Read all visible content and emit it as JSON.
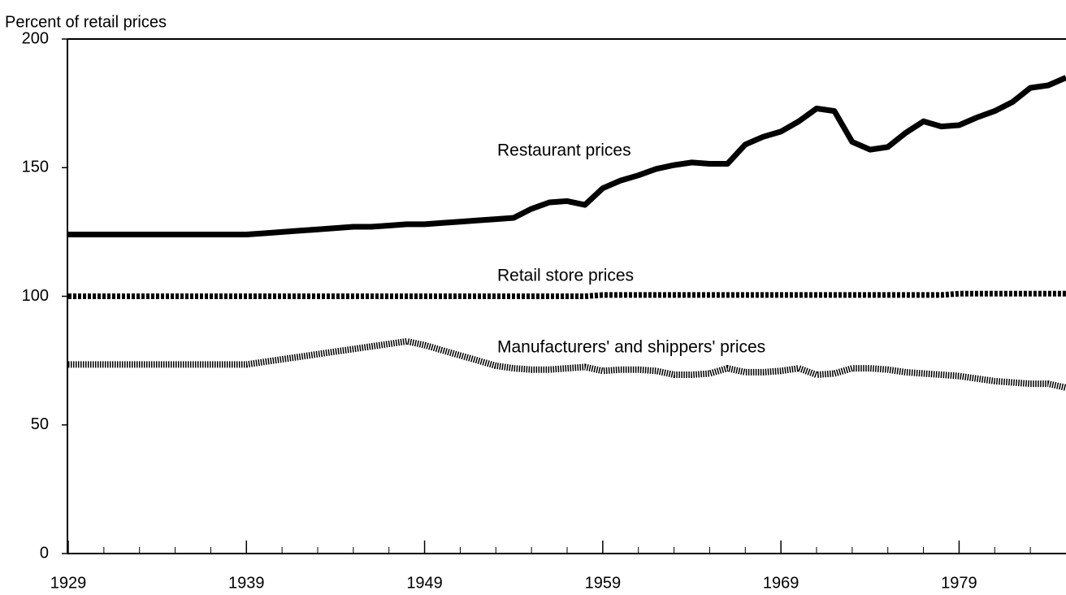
{
  "chart_data": {
    "type": "line",
    "ylabel": "Percent of retail prices",
    "x": [
      1929,
      1930,
      1931,
      1932,
      1933,
      1934,
      1935,
      1936,
      1937,
      1938,
      1939,
      1940,
      1941,
      1942,
      1943,
      1944,
      1945,
      1946,
      1947,
      1948,
      1949,
      1950,
      1951,
      1952,
      1953,
      1954,
      1955,
      1956,
      1957,
      1958,
      1959,
      1960,
      1961,
      1962,
      1963,
      1964,
      1965,
      1966,
      1967,
      1968,
      1969,
      1970,
      1971,
      1972,
      1973,
      1974,
      1975,
      1976,
      1977,
      1978,
      1979,
      1980,
      1981,
      1982,
      1983,
      1984,
      1985
    ],
    "series": [
      {
        "name": "Restaurant prices",
        "color": "#000000",
        "style": "solid",
        "values": [
          124,
          124,
          124,
          124,
          124,
          124,
          124,
          124,
          124,
          124,
          124,
          124.5,
          125,
          125.5,
          126,
          126.5,
          127,
          127,
          127.5,
          128,
          128,
          128.5,
          129,
          129.5,
          130,
          130.5,
          134,
          136.5,
          137,
          135.5,
          142,
          145,
          147,
          149.5,
          151,
          152,
          151.5,
          151.5,
          159,
          162,
          164,
          168,
          173,
          172,
          160,
          157,
          158,
          163.5,
          168,
          166,
          166.5,
          169.5,
          172,
          175.5,
          181,
          182,
          185
        ]
      },
      {
        "name": "Retail store prices",
        "color": "#000000",
        "style": "dotted",
        "values": [
          100,
          100,
          100,
          100,
          100,
          100,
          100,
          100,
          100,
          100,
          100,
          100,
          100,
          100,
          100,
          100,
          100,
          100,
          100,
          100,
          100,
          100,
          100,
          100,
          100,
          100,
          100,
          100,
          100,
          100,
          100.5,
          100.5,
          100.5,
          100.5,
          100.5,
          100.5,
          100.5,
          100.5,
          100.5,
          100.5,
          100.5,
          100.5,
          100.5,
          100.5,
          100.5,
          100.5,
          100.5,
          100.5,
          100.5,
          100.5,
          101,
          101,
          101,
          101,
          101,
          101,
          101
        ]
      },
      {
        "name": "Manufacturers' and shippers' prices",
        "color": "#000000",
        "style": "fine",
        "values": [
          73.5,
          73.5,
          73.5,
          73.5,
          73.5,
          73.5,
          73.5,
          73.5,
          73.5,
          73.5,
          73.5,
          74.5,
          75.5,
          76.5,
          77.5,
          78.5,
          79.5,
          80.5,
          81.5,
          82.5,
          81,
          79,
          77,
          75,
          73,
          72,
          71.5,
          71.5,
          72,
          72.5,
          71,
          71.5,
          71.5,
          71,
          69.5,
          69.5,
          70,
          72,
          70.5,
          70.5,
          71,
          72,
          69.5,
          70,
          72,
          72,
          71.5,
          70.5,
          70,
          69.5,
          69,
          68,
          67,
          66.5,
          66,
          66,
          64.5
        ]
      }
    ],
    "xlim": [
      1929,
      1985
    ],
    "xticks": [
      1929,
      1939,
      1949,
      1959,
      1969,
      1979
    ],
    "xminorticks": [
      1931,
      1933,
      1935,
      1937,
      1941,
      1943,
      1945,
      1947,
      1951,
      1953,
      1955,
      1957,
      1961,
      1963,
      1965,
      1967,
      1971,
      1973,
      1975,
      1977,
      1981,
      1983
    ],
    "ylim": [
      0,
      200
    ],
    "yticks": [
      0,
      50,
      100,
      150,
      200
    ]
  }
}
